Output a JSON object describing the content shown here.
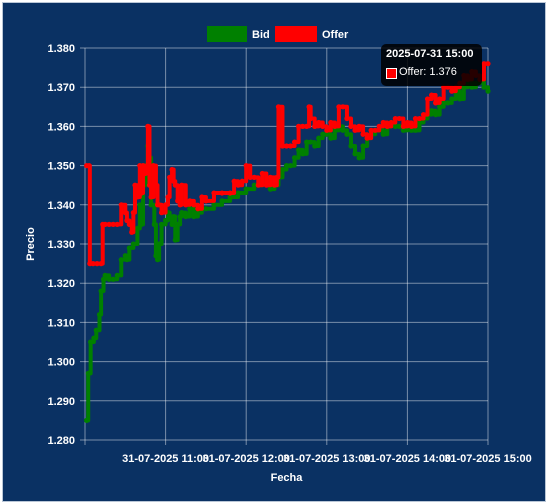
{
  "chart_data": {
    "type": "line",
    "xlabel": "Fecha",
    "ylabel": "Precio",
    "ylim": [
      1.28,
      1.38
    ],
    "yticks": [
      "1.280",
      "1.290",
      "1.300",
      "1.310",
      "1.320",
      "1.330",
      "1.340",
      "1.350",
      "1.360",
      "1.370",
      "1.380"
    ],
    "xticks": [
      "31-07-2025 11:00",
      "31-07-2025 12:00",
      "31-07-2025 13:00",
      "31-07-2025 14:00",
      "31-07-2025 15:00"
    ],
    "legend_position": "top",
    "grid": true,
    "series": [
      {
        "name": "Bid",
        "color": "#008000",
        "x": [
          10.02,
          10.04,
          10.07,
          10.11,
          10.14,
          10.18,
          10.2,
          10.23,
          10.25,
          10.3,
          10.35,
          10.4,
          10.45,
          10.5,
          10.52,
          10.55,
          10.6,
          10.65,
          10.68,
          10.7,
          10.72,
          10.75,
          10.78,
          10.8,
          10.82,
          10.86,
          10.88,
          10.9,
          10.92,
          10.95,
          11.0,
          11.03,
          11.05,
          11.08,
          11.1,
          11.12,
          11.15,
          11.18,
          11.2,
          11.25,
          11.3,
          11.35,
          11.4,
          11.45,
          11.5,
          11.6,
          11.7,
          11.8,
          11.9,
          12.0,
          12.1,
          12.2,
          12.3,
          12.35,
          12.4,
          12.45,
          12.5,
          12.55,
          12.6,
          12.65,
          12.7,
          12.75,
          12.8,
          12.85,
          12.9,
          12.95,
          13.0,
          13.05,
          13.1,
          13.15,
          13.2,
          13.25,
          13.3,
          13.35,
          13.4,
          13.45,
          13.5,
          13.55,
          13.6,
          13.65,
          13.7,
          13.75,
          13.8,
          13.85,
          13.9,
          13.95,
          14.0,
          14.05,
          14.1,
          14.15,
          14.2,
          14.25,
          14.3,
          14.35,
          14.4,
          14.45,
          14.5,
          14.55,
          14.6,
          14.65,
          14.7,
          14.75,
          14.8,
          14.85,
          14.9,
          14.95,
          15.0
        ],
        "values": [
          1.285,
          1.297,
          1.305,
          1.306,
          1.308,
          1.312,
          1.318,
          1.321,
          1.322,
          1.321,
          1.321,
          1.322,
          1.326,
          1.327,
          1.326,
          1.329,
          1.33,
          1.334,
          1.34,
          1.335,
          1.345,
          1.35,
          1.355,
          1.352,
          1.34,
          1.335,
          1.327,
          1.326,
          1.33,
          1.335,
          1.336,
          1.338,
          1.337,
          1.335,
          1.337,
          1.331,
          1.335,
          1.337,
          1.338,
          1.337,
          1.339,
          1.337,
          1.338,
          1.339,
          1.339,
          1.34,
          1.341,
          1.342,
          1.343,
          1.344,
          1.345,
          1.346,
          1.344,
          1.345,
          1.347,
          1.349,
          1.35,
          1.35,
          1.352,
          1.354,
          1.353,
          1.356,
          1.356,
          1.355,
          1.357,
          1.358,
          1.358,
          1.357,
          1.359,
          1.36,
          1.359,
          1.358,
          1.355,
          1.353,
          1.352,
          1.355,
          1.357,
          1.358,
          1.359,
          1.359,
          1.358,
          1.36,
          1.361,
          1.36,
          1.36,
          1.359,
          1.36,
          1.359,
          1.359,
          1.361,
          1.362,
          1.363,
          1.364,
          1.363,
          1.365,
          1.366,
          1.366,
          1.367,
          1.369,
          1.367,
          1.37,
          1.372,
          1.37,
          1.371,
          1.372,
          1.37,
          1.369
        ]
      },
      {
        "name": "Offer",
        "color": "#ff0000",
        "x": [
          10.02,
          10.05,
          10.06,
          10.1,
          10.15,
          10.2,
          10.22,
          10.25,
          10.3,
          10.35,
          10.4,
          10.45,
          10.5,
          10.52,
          10.55,
          10.58,
          10.6,
          10.62,
          10.65,
          10.68,
          10.7,
          10.72,
          10.75,
          10.78,
          10.8,
          10.82,
          10.85,
          10.88,
          10.9,
          10.92,
          10.95,
          11.0,
          11.03,
          11.05,
          11.08,
          11.1,
          11.12,
          11.15,
          11.18,
          11.2,
          11.25,
          11.3,
          11.35,
          11.4,
          11.45,
          11.5,
          11.6,
          11.7,
          11.8,
          11.85,
          11.9,
          11.95,
          12.0,
          12.05,
          12.1,
          12.15,
          12.2,
          12.25,
          12.3,
          12.35,
          12.38,
          12.4,
          12.45,
          12.5,
          12.55,
          12.6,
          12.65,
          12.7,
          12.75,
          12.78,
          12.8,
          12.85,
          12.9,
          12.95,
          13.0,
          13.05,
          13.1,
          13.15,
          13.2,
          13.25,
          13.3,
          13.35,
          13.4,
          13.45,
          13.5,
          13.55,
          13.6,
          13.65,
          13.7,
          13.75,
          13.8,
          13.85,
          13.9,
          13.95,
          14.0,
          14.05,
          14.1,
          14.15,
          14.2,
          14.25,
          14.3,
          14.35,
          14.4,
          14.45,
          14.5,
          14.55,
          14.6,
          14.65,
          14.7,
          14.75,
          14.8,
          14.85,
          14.9,
          14.95,
          15.0
        ],
        "values": [
          1.35,
          1.35,
          1.325,
          1.325,
          1.325,
          1.325,
          1.335,
          1.335,
          1.335,
          1.335,
          1.335,
          1.34,
          1.338,
          1.336,
          1.335,
          1.333,
          1.338,
          1.345,
          1.342,
          1.35,
          1.343,
          1.35,
          1.348,
          1.36,
          1.345,
          1.342,
          1.35,
          1.345,
          1.34,
          1.34,
          1.338,
          1.34,
          1.342,
          1.347,
          1.349,
          1.346,
          1.345,
          1.341,
          1.34,
          1.345,
          1.34,
          1.341,
          1.34,
          1.339,
          1.342,
          1.341,
          1.343,
          1.343,
          1.343,
          1.346,
          1.345,
          1.346,
          1.35,
          1.347,
          1.347,
          1.345,
          1.348,
          1.345,
          1.347,
          1.345,
          1.347,
          1.365,
          1.355,
          1.355,
          1.355,
          1.356,
          1.36,
          1.36,
          1.36,
          1.365,
          1.362,
          1.36,
          1.361,
          1.36,
          1.359,
          1.361,
          1.36,
          1.365,
          1.365,
          1.362,
          1.36,
          1.359,
          1.36,
          1.358,
          1.357,
          1.359,
          1.359,
          1.36,
          1.361,
          1.36,
          1.361,
          1.362,
          1.362,
          1.36,
          1.361,
          1.36,
          1.362,
          1.362,
          1.363,
          1.367,
          1.368,
          1.366,
          1.367,
          1.37,
          1.37,
          1.369,
          1.37,
          1.371,
          1.373,
          1.372,
          1.374,
          1.373,
          1.372,
          1.376,
          1.376
        ]
      }
    ]
  },
  "tooltip": {
    "title": "2025-07-31 15:00",
    "label": "Offer: 1.376"
  }
}
